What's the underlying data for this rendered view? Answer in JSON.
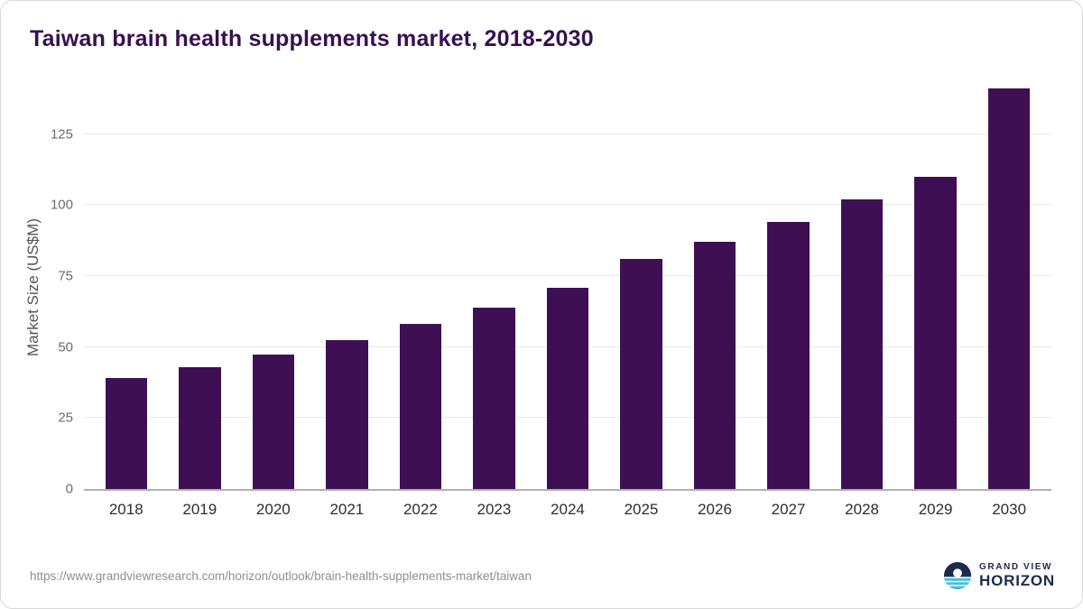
{
  "title": "Taiwan brain health supplements market, 2018-2030",
  "source_url": "https://www.grandviewresearch.com/horizon/outlook/brain-health-supplements-market/taiwan",
  "logo": {
    "line1": "GRAND VIEW",
    "line2": "HORIZON"
  },
  "colors": {
    "bar": "#3E1053",
    "title": "#36114F",
    "grid": "#e9e9e9",
    "baseline": "#b0b0b0",
    "axis_text": "#6b6b6b",
    "logo_navy": "#1B2B4A",
    "logo_teal": "#45C2D1"
  },
  "chart_data": {
    "type": "bar",
    "title": "Taiwan brain health supplements market, 2018-2030",
    "categories": [
      "2018",
      "2019",
      "2020",
      "2021",
      "2022",
      "2023",
      "2024",
      "2025",
      "2026",
      "2027",
      "2028",
      "2029",
      "2030"
    ],
    "values": [
      39,
      43,
      47.5,
      52.5,
      58,
      64,
      71,
      81,
      87,
      94,
      102,
      110,
      141
    ],
    "xlabel": "",
    "ylabel": "Market Size (US$M)",
    "ylim": [
      0,
      143
    ],
    "yticks": [
      0,
      25,
      50,
      75,
      100,
      125
    ],
    "grid": true,
    "legend": false
  }
}
